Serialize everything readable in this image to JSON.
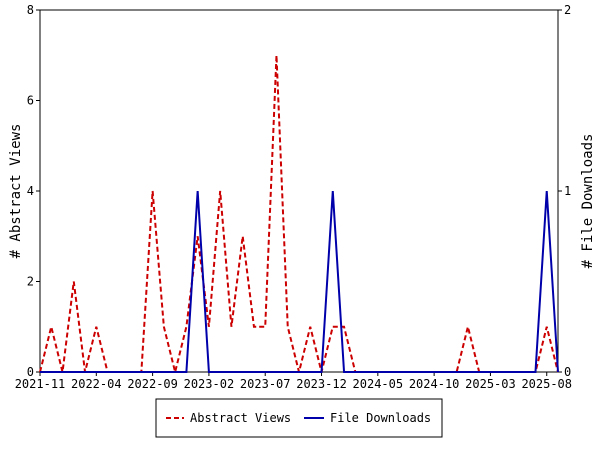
{
  "chart_data": {
    "type": "line",
    "title": "",
    "y_left_label": "# Abstract Views",
    "y_right_label": "# File Downloads",
    "y_left_range": [
      0,
      8
    ],
    "y_left_ticks": [
      0,
      2,
      4,
      6,
      8
    ],
    "y_right_range": [
      0,
      2
    ],
    "y_right_ticks": [
      0,
      1,
      2
    ],
    "grid": false,
    "legend_position": "bottom-center",
    "x_tick_labels": [
      "2021-11",
      "2022-04",
      "2022-09",
      "2023-02",
      "2023-07",
      "2023-12",
      "2024-05",
      "2024-10",
      "2025-03",
      "2025-08"
    ],
    "x": [
      "2021-11",
      "2021-12",
      "2022-01",
      "2022-02",
      "2022-03",
      "2022-04",
      "2022-05",
      "2022-06",
      "2022-07",
      "2022-08",
      "2022-09",
      "2022-10",
      "2022-11",
      "2022-12",
      "2023-01",
      "2023-02",
      "2023-03",
      "2023-04",
      "2023-05",
      "2023-06",
      "2023-07",
      "2023-08",
      "2023-09",
      "2023-10",
      "2023-11",
      "2023-12",
      "2024-01",
      "2024-02",
      "2024-03",
      "2024-04",
      "2024-05",
      "2024-06",
      "2024-07",
      "2024-08",
      "2024-09",
      "2024-10",
      "2024-11",
      "2024-12",
      "2025-01",
      "2025-02",
      "2025-03",
      "2025-04",
      "2025-05",
      "2025-06",
      "2025-07",
      "2025-08",
      "2025-09"
    ],
    "series": [
      {
        "name": "Abstract Views",
        "axis": "left",
        "color": "#cc0000",
        "style": "dashed",
        "values": [
          0,
          1,
          0,
          2,
          0,
          1,
          0,
          0,
          0,
          0,
          4,
          1,
          0,
          1,
          3,
          1,
          4,
          1,
          3,
          1,
          1,
          7,
          1,
          0,
          1,
          0,
          1,
          1,
          0,
          0,
          0,
          0,
          0,
          0,
          0,
          0,
          0,
          0,
          1,
          0,
          0,
          0,
          0,
          0,
          0,
          1,
          0
        ]
      },
      {
        "name": "File Downloads",
        "axis": "right",
        "color": "#0000aa",
        "style": "solid",
        "values": [
          0,
          0,
          0,
          0,
          0,
          0,
          0,
          0,
          0,
          0,
          0,
          0,
          0,
          0,
          1,
          0,
          0,
          0,
          0,
          0,
          0,
          0,
          0,
          0,
          0,
          0,
          1,
          0,
          0,
          0,
          0,
          0,
          0,
          0,
          0,
          0,
          0,
          0,
          0,
          0,
          0,
          0,
          0,
          0,
          0,
          1,
          0
        ]
      }
    ]
  }
}
